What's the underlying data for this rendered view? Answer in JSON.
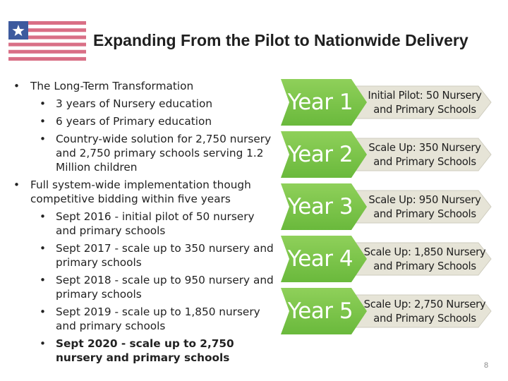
{
  "title": "Expanding From the Pilot to Nationwide Delivery",
  "flag": {
    "name": "liberia-flag",
    "colors": {
      "stripe_red": "#d96f86",
      "stripe_white": "#ffffff",
      "canton": "#3d5a9e",
      "star": "#ffffff"
    }
  },
  "bullets": [
    {
      "level": 1,
      "text": "The Long-Term Transformation",
      "bold": false
    },
    {
      "level": 2,
      "text": "3 years of Nursery education",
      "bold": false
    },
    {
      "level": 2,
      "text": "6 years of Primary education",
      "bold": false
    },
    {
      "level": 2,
      "text": "Country-wide solution for 2,750 nursery and 2,750  primary schools serving 1.2 Million children",
      "bold": false
    },
    {
      "level": 1,
      "text": "Full system-wide implementation though competitive bidding within five years",
      "bold": false
    },
    {
      "level": 2,
      "text": "Sept 2016 - initial pilot of 50 nursery and primary schools",
      "bold": false
    },
    {
      "level": 2,
      "text": "Sept 2017 - scale up to 350 nursery and primary schools",
      "bold": false
    },
    {
      "level": 2,
      "text": "Sept 2018 - scale up to 950 nursery and primary schools",
      "bold": false
    },
    {
      "level": 2,
      "text": "Sept 2019 - scale up to 1,850 nursery and primary schools",
      "bold": false
    },
    {
      "level": 2,
      "text": "Sept 2020 - scale up to 2,750 nursery and primary schools",
      "bold": true
    }
  ],
  "timeline": {
    "colors": {
      "arrow": "#6ab93c",
      "arrow_light": "#8fd05a",
      "box": "#e6e4d7",
      "box_edge": "#cfcdbf"
    },
    "items": [
      {
        "year": "Year 1",
        "desc_line1": "Initial Pilot: 50 Nursery",
        "desc_line2": "and Primary Schools"
      },
      {
        "year": "Year 2",
        "desc_line1": "Scale Up: 350 Nursery",
        "desc_line2": "and Primary Schools"
      },
      {
        "year": "Year 3",
        "desc_line1": "Scale Up: 950 Nursery",
        "desc_line2": "and Primary Schools"
      },
      {
        "year": "Year 4",
        "desc_line1": "Scale Up: 1,850 Nursery",
        "desc_line2": "and Primary Schools"
      },
      {
        "year": "Year 5",
        "desc_line1": "Scale Up: 2,750 Nursery",
        "desc_line2": "and Primary Schools"
      }
    ]
  },
  "page_number": "8"
}
